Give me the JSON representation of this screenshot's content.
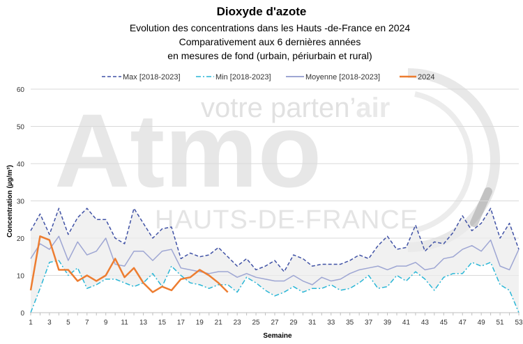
{
  "chart_data": {
    "type": "line",
    "title": "Dioxyde d'azote",
    "subtitle_lines": [
      "Evolution des concentrations dans les Hauts -de-France en 2024",
      "Comparativement aux 6 dernières années",
      "en mesures de fond (urbain, périurbain et rural)"
    ],
    "xlabel": "Semaine",
    "ylabel": "Concentration (µg/m³)",
    "ylim": [
      0,
      60
    ],
    "yticks": [
      0,
      10,
      20,
      30,
      40,
      50,
      60
    ],
    "xlim": [
      1,
      53
    ],
    "xticks": [
      1,
      3,
      5,
      7,
      9,
      11,
      13,
      15,
      17,
      19,
      21,
      23,
      25,
      27,
      29,
      31,
      33,
      35,
      37,
      39,
      41,
      43,
      45,
      47,
      49,
      51,
      53
    ],
    "grid": "horizontal",
    "legend_position": "top",
    "watermark": {
      "line1": "votre parten’",
      "line1_bold": "air",
      "line2": "Atmo",
      "line3": "HAUTS-DE-FRANCE"
    },
    "series": [
      {
        "name": "Max [2018-2023]",
        "color": "#3f51a5",
        "style": "dashed",
        "x": [
          1,
          2,
          3,
          4,
          5,
          6,
          7,
          8,
          9,
          10,
          11,
          12,
          13,
          14,
          15,
          16,
          17,
          18,
          19,
          20,
          21,
          22,
          23,
          24,
          25,
          26,
          27,
          28,
          29,
          30,
          31,
          32,
          33,
          34,
          35,
          36,
          37,
          38,
          39,
          40,
          41,
          42,
          43,
          44,
          45,
          46,
          47,
          48,
          49,
          50,
          51,
          52,
          53
        ],
        "values": [
          22,
          26.5,
          21,
          28,
          21,
          25.5,
          28,
          25,
          25,
          20,
          18.5,
          28,
          24,
          20,
          22.5,
          23,
          14.5,
          16,
          15,
          15.5,
          17.5,
          15,
          12.5,
          14.5,
          11.5,
          12.5,
          14,
          11,
          15.5,
          14.5,
          12.5,
          13,
          13,
          13,
          14,
          15.5,
          14.5,
          18,
          20.5,
          17,
          17.5,
          23.5,
          16.5,
          19,
          18.5,
          21.5,
          26,
          22,
          24,
          28,
          20,
          24,
          17
        ]
      },
      {
        "name": "Min [2018-2023]",
        "color": "#29b6d6",
        "style": "dashdot",
        "x": [
          1,
          2,
          3,
          4,
          5,
          6,
          7,
          8,
          9,
          10,
          11,
          12,
          13,
          14,
          15,
          16,
          17,
          18,
          19,
          20,
          21,
          22,
          23,
          24,
          25,
          26,
          27,
          28,
          29,
          30,
          31,
          32,
          33,
          34,
          35,
          36,
          37,
          38,
          39,
          40,
          41,
          42,
          43,
          44,
          45,
          46,
          47,
          48,
          49,
          50,
          51,
          52,
          53
        ],
        "values": [
          0,
          6.5,
          13.5,
          14,
          10,
          12,
          6.5,
          7.5,
          9,
          9,
          8,
          7,
          8,
          10.5,
          7,
          12.5,
          10,
          8,
          7.5,
          6.5,
          7.5,
          7.5,
          5.5,
          9.5,
          8,
          6,
          4.5,
          5.5,
          7,
          5.5,
          6.5,
          6.5,
          7.5,
          6,
          6.5,
          8,
          10,
          6.5,
          7,
          10,
          8.5,
          11,
          9,
          6,
          9.5,
          10.5,
          10.5,
          13.5,
          12.5,
          13.5,
          7.5,
          6,
          0
        ]
      },
      {
        "name": "Moyenne [2018-2023]",
        "color": "#9ea6d3",
        "style": "solid",
        "x": [
          1,
          2,
          3,
          4,
          5,
          6,
          7,
          8,
          9,
          10,
          11,
          12,
          13,
          14,
          15,
          16,
          17,
          18,
          19,
          20,
          21,
          22,
          23,
          24,
          25,
          26,
          27,
          28,
          29,
          30,
          31,
          32,
          33,
          34,
          35,
          36,
          37,
          38,
          39,
          40,
          41,
          42,
          43,
          44,
          45,
          46,
          47,
          48,
          49,
          50,
          51,
          52,
          53
        ],
        "values": [
          14.5,
          18.5,
          17,
          20.5,
          14,
          19,
          15.5,
          16.5,
          20,
          13,
          12.5,
          16.5,
          16.5,
          14,
          16.5,
          17,
          12,
          11.5,
          11,
          10.5,
          11,
          11,
          9.5,
          10.5,
          9.5,
          9,
          8.5,
          8.5,
          10,
          8.5,
          7.5,
          9.5,
          8.5,
          9,
          10.5,
          11.5,
          12,
          12.5,
          11.5,
          12.5,
          12.5,
          13.5,
          11.5,
          12,
          14.5,
          15,
          17,
          18,
          16.5,
          19.5,
          12.5,
          11.5,
          17
        ]
      },
      {
        "name": "2024",
        "color": "#ed7d31",
        "style": "solid",
        "x": [
          1,
          2,
          3,
          4,
          5,
          6,
          7,
          8,
          9,
          10,
          11,
          12,
          13,
          14,
          15,
          16,
          17,
          18,
          19,
          20,
          21,
          22
        ],
        "values": [
          6,
          20.5,
          19.5,
          11.5,
          11.5,
          8.5,
          10,
          8.5,
          10,
          14.5,
          9.5,
          12,
          8,
          5.5,
          7,
          6,
          9,
          9.5,
          11.5,
          10,
          8,
          5.5
        ]
      }
    ]
  }
}
